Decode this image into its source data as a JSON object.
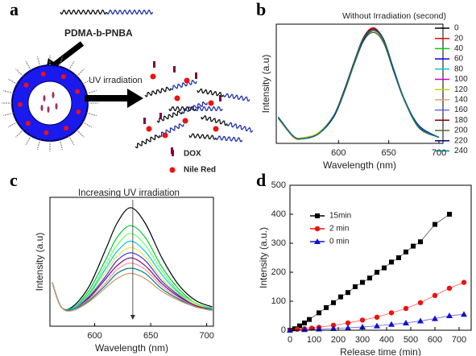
{
  "diagram": {
    "panel_label": "a",
    "polymer": "PDMA-b-PNBA",
    "arrow_label": "UV irradiation",
    "legend": [
      "DOX",
      "Nile Red"
    ]
  },
  "chart_data": [
    {
      "type": "line",
      "panel_label": "b",
      "x_label": "Wavelength (nm)",
      "y_label": "Intensity (a.u)",
      "legend_title": "Without Irradiation  (second)",
      "legend": "upper right",
      "smooth": true,
      "xlim": [
        538,
        704
      ],
      "ylim": [
        0,
        100
      ],
      "xticks": [
        600,
        650,
        700
      ],
      "x": [
        540,
        555,
        565,
        580,
        595,
        605,
        615,
        625,
        635,
        645,
        655,
        665,
        680,
        700
      ],
      "series": [
        {
          "name": "0",
          "color": "#000000",
          "values": [
            22,
            6,
            4,
            8,
            22,
            42,
            66,
            88,
            96,
            86,
            62,
            38,
            14,
            5
          ]
        },
        {
          "name": "20",
          "color": "#ff0000",
          "values": [
            21,
            6,
            4,
            8,
            23,
            43,
            67,
            89,
            97,
            86,
            61,
            37,
            14,
            5
          ]
        },
        {
          "name": "40",
          "color": "#00cc00",
          "values": [
            22,
            5,
            4,
            8,
            22,
            41,
            65,
            87,
            95,
            85,
            61,
            38,
            14,
            5
          ]
        },
        {
          "name": "60",
          "color": "#0000ff",
          "values": [
            22,
            6,
            4,
            9,
            23,
            43,
            67,
            88,
            96,
            87,
            62,
            38,
            15,
            5
          ]
        },
        {
          "name": "80",
          "color": "#00cccc",
          "values": [
            21,
            6,
            4,
            8,
            22,
            42,
            65,
            86,
            94,
            85,
            61,
            37,
            14,
            5
          ]
        },
        {
          "name": "100",
          "color": "#cc00cc",
          "values": [
            22,
            6,
            4,
            8,
            22,
            42,
            66,
            88,
            95,
            86,
            62,
            38,
            14,
            5
          ]
        },
        {
          "name": "120",
          "color": "#cccc00",
          "values": [
            22,
            6,
            5,
            9,
            23,
            42,
            66,
            87,
            95,
            86,
            62,
            38,
            14,
            5
          ]
        },
        {
          "name": "140",
          "color": "#e0a070",
          "values": [
            21,
            5,
            4,
            8,
            22,
            41,
            65,
            87,
            94,
            85,
            61,
            37,
            14,
            5
          ]
        },
        {
          "name": "160",
          "color": "#6666ff",
          "values": [
            22,
            6,
            4,
            8,
            22,
            42,
            66,
            88,
            96,
            86,
            62,
            38,
            14,
            5
          ]
        },
        {
          "name": "180",
          "color": "#800000",
          "values": [
            22,
            6,
            4,
            8,
            23,
            43,
            67,
            89,
            96,
            87,
            62,
            38,
            14,
            5
          ]
        },
        {
          "name": "200",
          "color": "#556b2f",
          "values": [
            21,
            6,
            4,
            8,
            22,
            41,
            65,
            86,
            93,
            84,
            60,
            37,
            13,
            5
          ]
        },
        {
          "name": "220",
          "color": "#000080",
          "values": [
            22,
            6,
            4,
            8,
            22,
            42,
            66,
            87,
            95,
            86,
            61,
            38,
            14,
            5
          ]
        },
        {
          "name": "240",
          "color": "#008080",
          "values": [
            22,
            6,
            4,
            8,
            23,
            42,
            66,
            88,
            95,
            86,
            62,
            38,
            14,
            5
          ]
        }
      ]
    },
    {
      "type": "line",
      "panel_label": "c",
      "x_label": "Wavelength (nm)",
      "y_label": "Intensity (a.u)",
      "annotation": "Increasing UV irradiation",
      "smooth": true,
      "xlim": [
        560,
        706
      ],
      "ylim": [
        0,
        100
      ],
      "xticks": [
        600,
        650,
        700
      ],
      "x": [
        562,
        570,
        580,
        595,
        610,
        620,
        632,
        645,
        660,
        675,
        690,
        705
      ],
      "series": [
        {
          "color": "#000000",
          "values": [
            34,
            15,
            15,
            31,
            60,
            80,
            92,
            80,
            53,
            32,
            20,
            15
          ]
        },
        {
          "color": "#00cc33",
          "values": [
            34,
            15,
            14,
            28,
            52,
            69,
            78,
            69,
            46,
            29,
            18,
            14
          ]
        },
        {
          "color": "#66ff66",
          "values": [
            34,
            15,
            14,
            26,
            48,
            63,
            72,
            63,
            43,
            27,
            18,
            14
          ]
        },
        {
          "color": "#00cccc",
          "values": [
            34,
            15,
            14,
            25,
            45,
            58,
            66,
            58,
            40,
            26,
            17,
            14
          ]
        },
        {
          "color": "#e6e64d",
          "values": [
            34,
            15,
            13,
            24,
            42,
            54,
            61,
            54,
            37,
            25,
            17,
            13
          ]
        },
        {
          "color": "#3333cc",
          "values": [
            34,
            15,
            13,
            23,
            39,
            51,
            57,
            51,
            35,
            24,
            16,
            13
          ]
        },
        {
          "color": "#800080",
          "values": [
            34,
            15,
            13,
            22,
            37,
            47,
            53,
            47,
            33,
            23,
            16,
            13
          ]
        },
        {
          "color": "#ff9999",
          "values": [
            34,
            15,
            13,
            21,
            34,
            44,
            49,
            44,
            31,
            22,
            15,
            13
          ]
        },
        {
          "color": "#008080",
          "values": [
            34,
            15,
            13,
            20,
            32,
            41,
            45,
            41,
            29,
            21,
            15,
            13
          ]
        },
        {
          "color": "#cc9966",
          "values": [
            34,
            15,
            12,
            19,
            30,
            37,
            41,
            37,
            27,
            20,
            15,
            12
          ]
        }
      ]
    },
    {
      "type": "line",
      "panel_label": "d",
      "x_label": "Release time (min)",
      "y_label": "Intensity (a.u.)",
      "legend": "upper left",
      "smooth": false,
      "xlim": [
        0,
        750
      ],
      "ylim": [
        0,
        500
      ],
      "xticks": [
        0,
        100,
        200,
        300,
        400,
        500,
        600,
        700
      ],
      "yticks": [
        0,
        100,
        200,
        300,
        400,
        500
      ],
      "series": [
        {
          "name": "15min",
          "color": "#000000",
          "marker": "square",
          "x": [
            0,
            20,
            40,
            60,
            80,
            120,
            150,
            180,
            210,
            240,
            270,
            300,
            330,
            360,
            390,
            420,
            450,
            480,
            510,
            540,
            600,
            660
          ],
          "values": [
            0,
            5,
            15,
            25,
            37,
            60,
            78,
            95,
            115,
            130,
            150,
            165,
            180,
            200,
            215,
            235,
            250,
            270,
            290,
            305,
            365,
            400
          ]
        },
        {
          "name": "2 min",
          "color": "#ee1111",
          "marker": "circle",
          "x": [
            0,
            30,
            60,
            90,
            120,
            180,
            240,
            300,
            360,
            420,
            480,
            540,
            600,
            660,
            720
          ],
          "values": [
            0,
            3,
            5,
            7,
            10,
            17,
            25,
            35,
            45,
            60,
            75,
            95,
            120,
            145,
            165
          ]
        },
        {
          "name": "0 min",
          "color": "#1111cc",
          "marker": "triangle",
          "x": [
            0,
            60,
            120,
            180,
            240,
            300,
            360,
            420,
            480,
            540,
            600,
            660,
            720
          ],
          "values": [
            0,
            2,
            4,
            6,
            8,
            11,
            15,
            20,
            25,
            32,
            40,
            50,
            55
          ]
        }
      ]
    }
  ]
}
